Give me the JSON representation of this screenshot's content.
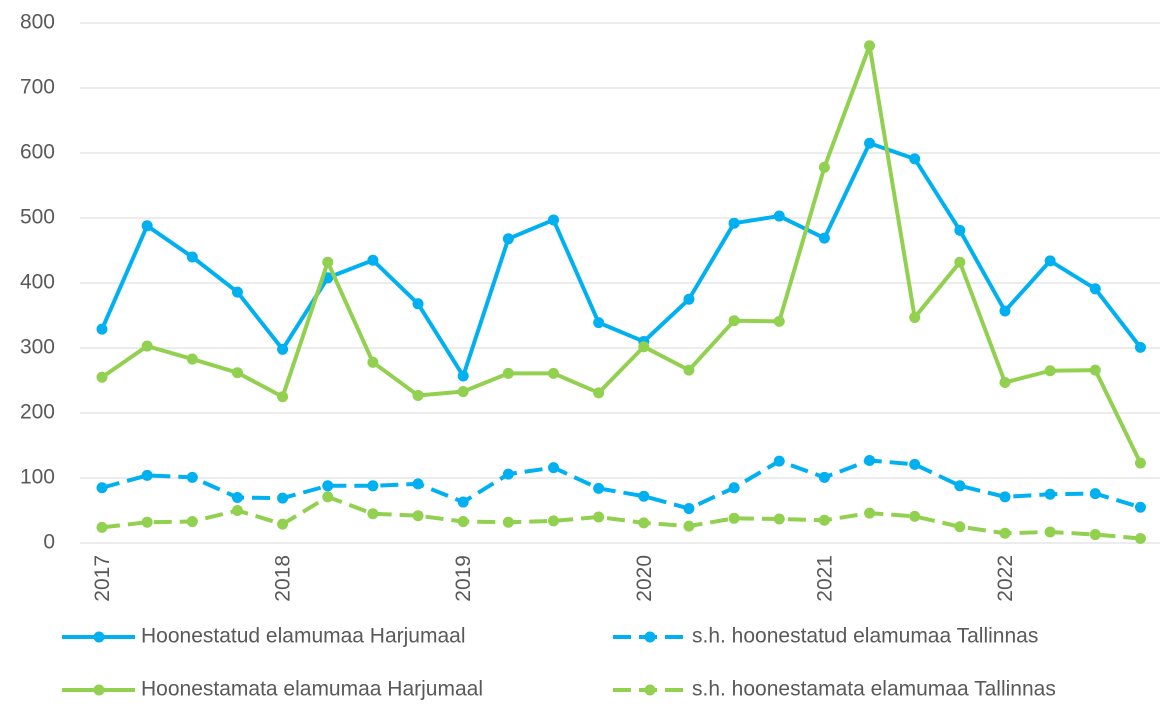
{
  "chart_data": {
    "type": "line",
    "categories": [
      "2017",
      null,
      null,
      null,
      "2018",
      null,
      null,
      null,
      "2019",
      null,
      null,
      null,
      "2020",
      null,
      null,
      null,
      "2021",
      null,
      null,
      null,
      "2022",
      null,
      null,
      null
    ],
    "series": [
      {
        "name": "Hoonestatud elamumaa Harjumaal",
        "color": "#00b0f0",
        "line_style": "solid",
        "values": [
          329,
          488,
          440,
          386,
          298,
          408,
          435,
          368,
          257,
          468,
          497,
          339,
          310,
          375,
          492,
          503,
          469,
          615,
          591,
          481,
          357,
          434,
          391,
          301
        ]
      },
      {
        "name": "s.h. hoonestatud elamumaa Tallinnas",
        "color": "#00b0f0",
        "line_style": "dashed",
        "values": [
          85,
          104,
          101,
          70,
          69,
          88,
          88,
          91,
          63,
          106,
          116,
          84,
          72,
          53,
          85,
          126,
          101,
          127,
          121,
          88,
          71,
          75,
          76,
          55
        ]
      },
      {
        "name": "Hoonestamata elamumaa Harjumaal",
        "color": "#92d050",
        "line_style": "solid",
        "values": [
          255,
          303,
          283,
          262,
          225,
          432,
          278,
          227,
          233,
          261,
          261,
          231,
          302,
          266,
          342,
          341,
          578,
          765,
          347,
          432,
          247,
          265,
          266,
          123
        ]
      },
      {
        "name": "s.h. hoonestamata elamumaa Tallinnas",
        "color": "#92d050",
        "line_style": "dashed",
        "values": [
          24,
          32,
          33,
          50,
          29,
          71,
          45,
          42,
          33,
          32,
          34,
          40,
          31,
          26,
          38,
          37,
          35,
          46,
          41,
          25,
          15,
          17,
          13,
          7
        ]
      }
    ],
    "ylim": [
      0,
      800
    ],
    "yticks": [
      0,
      100,
      200,
      300,
      400,
      500,
      600,
      700,
      800
    ],
    "grid": true,
    "legend": "bottom"
  }
}
